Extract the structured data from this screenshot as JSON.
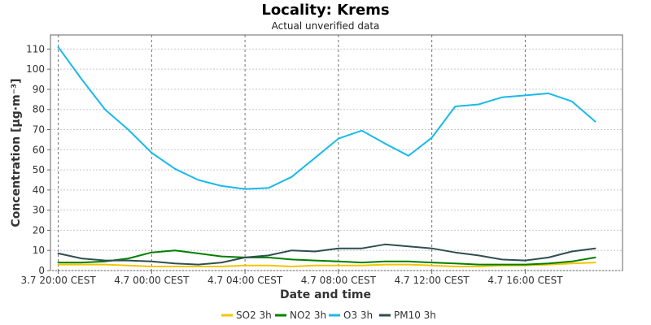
{
  "chart_data": {
    "type": "line",
    "title": "Locality: Krems",
    "subtitle": "Actual unverified data",
    "xlabel": "Date and time",
    "ylabel": "Concentration [µg·m⁻³]",
    "x": [
      "2024-07-03 20:00",
      "2024-07-03 21:00",
      "2024-07-03 22:00",
      "2024-07-03 23:00",
      "2024-07-04 00:00",
      "2024-07-04 01:00",
      "2024-07-04 02:00",
      "2024-07-04 03:00",
      "2024-07-04 04:00",
      "2024-07-04 05:00",
      "2024-07-04 06:00",
      "2024-07-04 07:00",
      "2024-07-04 08:00",
      "2024-07-04 09:00",
      "2024-07-04 10:00",
      "2024-07-04 11:00",
      "2024-07-04 12:00",
      "2024-07-04 13:00",
      "2024-07-04 14:00",
      "2024-07-04 15:00",
      "2024-07-04 16:00",
      "2024-07-04 17:00",
      "2024-07-04 18:00",
      "2024-07-04 19:00"
    ],
    "xlim": [
      "2024-07-03 19:40",
      "2024-07-04 20:10"
    ],
    "ylim": [
      0,
      117
    ],
    "x_ticks": [
      {
        "x": "2024-07-03 20:00",
        "label": "3.7 20:00 CEST"
      },
      {
        "x": "2024-07-04 00:00",
        "label": "4.7 00:00 CEST"
      },
      {
        "x": "2024-07-04 04:00",
        "label": "4.7 04:00 CEST"
      },
      {
        "x": "2024-07-04 08:00",
        "label": "4.7 08:00 CEST"
      },
      {
        "x": "2024-07-04 12:00",
        "label": "4.7 12:00 CEST"
      },
      {
        "x": "2024-07-04 16:00",
        "label": "4.7 16:00 CEST"
      }
    ],
    "y_ticks": [
      0,
      10,
      20,
      30,
      40,
      50,
      60,
      70,
      80,
      90,
      100,
      110
    ],
    "grid": true,
    "legend_position": "bottom",
    "series": [
      {
        "name": "SO2 3h",
        "color": "#f5c400",
        "values": [
          3,
          3,
          3,
          2.5,
          2,
          2,
          2,
          2,
          2.5,
          2.5,
          2,
          2.5,
          2.5,
          2.5,
          3,
          3,
          2.5,
          2,
          2,
          2.5,
          2.5,
          3,
          3.5,
          4
        ]
      },
      {
        "name": "NO2 3h",
        "color": "#008000",
        "values": [
          4,
          4,
          4.5,
          6,
          9,
          10,
          8.5,
          7,
          6.5,
          6.5,
          5.5,
          5,
          4.5,
          4,
          4.5,
          4.5,
          4,
          3.5,
          3,
          3,
          3,
          3.5,
          4.5,
          6.5
        ]
      },
      {
        "name": "O3 3h",
        "color": "#1ab9ec",
        "values": [
          111,
          95,
          80,
          70,
          58.5,
          50.5,
          45,
          42,
          40.5,
          41,
          46.5,
          56,
          65.5,
          69.5,
          63,
          57,
          66,
          81.5,
          82.5,
          86,
          87,
          88,
          84,
          74
        ]
      },
      {
        "name": "PM10 3h",
        "color": "#2f4f4f",
        "values": [
          8.5,
          6,
          5,
          5,
          4.5,
          3.5,
          3,
          4,
          6.5,
          7.5,
          10,
          9.5,
          11,
          11,
          13,
          12,
          11,
          9,
          7.5,
          5.5,
          5,
          6.5,
          9.5,
          11
        ]
      }
    ]
  }
}
